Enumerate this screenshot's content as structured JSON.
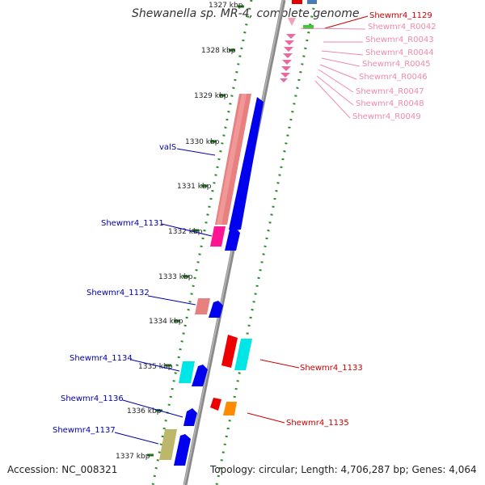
{
  "title": "Shewanella sp. MR-4, complete genome",
  "footer": {
    "accession": "Accession: NC_008321",
    "topology": "Topology: circular; Length: 4,706,287 bp; Genes: 4,064"
  },
  "colors": {
    "backbone": "#888888",
    "tick": "#2e8b2e",
    "label_blue": "#0000aa",
    "label_red": "#cc0000",
    "label_pink": "#f08aa8"
  },
  "kbp_labels": [
    "1327 kbp",
    "1328 kbp",
    "1329 kbp",
    "1330 kbp",
    "1331 kbp",
    "1332 kbp",
    "1333 kbp",
    "1334 kbp",
    "1335 kbp",
    "1336 kbp",
    "1337 kbp"
  ],
  "gene_labels": {
    "left": [
      "valS",
      "Shewmr4_1131",
      "Shewmr4_1132",
      "Shewmr4_1134",
      "Shewmr4_1136",
      "Shewmr4_1137"
    ],
    "right_red": [
      "Shewmr4_1129",
      "Shewmr4_1133",
      "Shewmr4_1135"
    ],
    "right_pink": [
      "Shewmr4_R0042",
      "Shewmr4_R0043",
      "Shewmr4_R0044",
      "Shewmr4_R0045",
      "Shewmr4_R0046",
      "Shewmr4_R0047",
      "Shewmr4_R0048",
      "Shewmr4_R0049"
    ]
  }
}
